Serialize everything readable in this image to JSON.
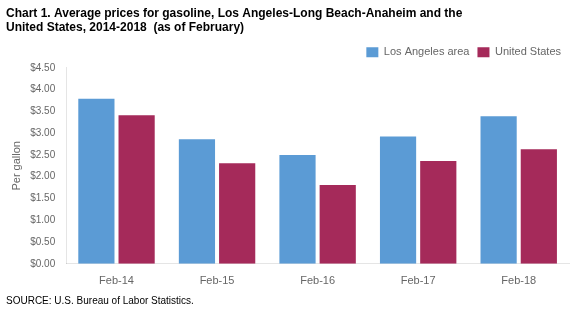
{
  "chart_data": {
    "type": "bar",
    "title": [
      "Chart 1. Average prices for gasoline, Los Angeles-Long Beach-Anaheim and the",
      "United States, 2014-2018  (as of February)"
    ],
    "ylabel": "Per gallon",
    "annotations": [
      "SOURCE: U.S. Bureau of Labor Statistics."
    ],
    "categories": [
      "Feb-14",
      "Feb-15",
      "Feb-16",
      "Feb-17",
      "Feb-18"
    ],
    "series": [
      {
        "name": "Los Angeles area",
        "color": "#5B9BD5",
        "values": [
          3.79,
          2.86,
          2.5,
          2.92,
          3.39
        ]
      },
      {
        "name": "United States",
        "color": "#A52A5A",
        "values": [
          3.41,
          2.31,
          1.81,
          2.36,
          2.63
        ]
      }
    ],
    "ylim": [
      0,
      4.5
    ],
    "yticks": [
      {
        "value": 0.0,
        "label": "$0.00"
      },
      {
        "value": 0.5,
        "label": "$0.50"
      },
      {
        "value": 1.0,
        "label": "$1.00"
      },
      {
        "value": 1.5,
        "label": "$1.50"
      },
      {
        "value": 2.0,
        "label": "$2.00"
      },
      {
        "value": 2.5,
        "label": "$2.50"
      },
      {
        "value": 3.0,
        "label": "$3.00"
      },
      {
        "value": 3.5,
        "label": "$3.50"
      },
      {
        "value": 4.0,
        "label": "$4.00"
      },
      {
        "value": 4.5,
        "label": "$4.50"
      }
    ],
    "grid": false,
    "legend": "upper right"
  }
}
